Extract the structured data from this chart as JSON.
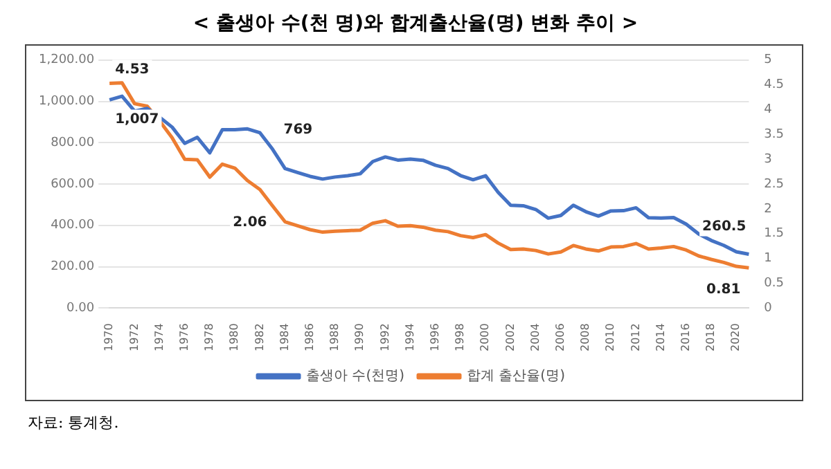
{
  "chart_data": {
    "type": "line",
    "title": "< 출생아 수(천 명)와 합계출산율(명) 변화 추이 >",
    "categories": [
      "1970",
      null,
      "1972",
      null,
      "1974",
      null,
      "1976",
      null,
      "1978",
      null,
      "1980",
      null,
      "1982",
      null,
      "1984",
      null,
      "1986",
      null,
      "1988",
      null,
      "1990",
      null,
      "1992",
      null,
      "1994",
      null,
      "1996",
      null,
      "1998",
      null,
      "2000",
      null,
      "2002",
      null,
      "2004",
      null,
      "2006",
      null,
      "2008",
      null,
      "2010",
      null,
      "2012",
      null,
      "2014",
      null,
      "2016",
      null,
      "2018",
      null,
      "2020",
      null
    ],
    "series": [
      {
        "name": "출생아 수(천명)",
        "color": "#4472c4",
        "values": [
          1007,
          1025,
          953,
          966,
          923,
          875,
          797,
          826,
          751,
          863,
          863,
          867,
          848,
          769,
          675,
          656,
          637,
          624,
          634,
          640,
          650,
          709,
          731,
          716,
          721,
          715,
          691,
          675,
          641,
          621,
          640,
          560,
          497,
          495,
          477,
          435,
          448,
          497,
          466,
          445,
          470,
          471,
          485,
          437,
          435,
          438,
          406,
          358,
          327,
          303,
          272,
          260.5
        ],
        "value_labels": [
          "1,007",
          null,
          null,
          null,
          null,
          null,
          null,
          null,
          null,
          null,
          null,
          null,
          null,
          "769",
          null,
          null,
          null,
          null,
          null,
          null,
          null,
          null,
          null,
          null,
          null,
          null,
          null,
          null,
          null,
          null,
          null,
          null,
          null,
          null,
          null,
          null,
          null,
          null,
          null,
          null,
          null,
          null,
          null,
          null,
          null,
          null,
          null,
          null,
          null,
          null,
          null,
          "260.5"
        ]
      },
      {
        "name": "합계 출산율(명)",
        "color": "#ed7d31",
        "axis": "y2",
        "values": [
          4.53,
          4.54,
          4.12,
          4.07,
          3.77,
          3.43,
          3.0,
          2.99,
          2.64,
          2.9,
          2.82,
          2.57,
          2.39,
          2.06,
          1.74,
          1.66,
          1.58,
          1.53,
          1.55,
          1.56,
          1.57,
          1.71,
          1.76,
          1.65,
          1.66,
          1.63,
          1.57,
          1.54,
          1.46,
          1.42,
          1.48,
          1.31,
          1.18,
          1.19,
          1.16,
          1.09,
          1.13,
          1.26,
          1.19,
          1.15,
          1.23,
          1.24,
          1.3,
          1.19,
          1.21,
          1.24,
          1.17,
          1.05,
          0.98,
          0.92,
          0.84,
          0.81
        ],
        "value_labels": [
          "4.53",
          null,
          null,
          null,
          null,
          null,
          null,
          null,
          null,
          null,
          null,
          null,
          null,
          "2.06",
          null,
          null,
          null,
          null,
          null,
          null,
          null,
          null,
          null,
          null,
          null,
          null,
          null,
          null,
          null,
          null,
          null,
          null,
          null,
          null,
          null,
          null,
          null,
          null,
          null,
          null,
          null,
          null,
          null,
          null,
          null,
          null,
          null,
          null,
          null,
          null,
          null,
          "0.81"
        ]
      }
    ],
    "ylim": [
      0,
      1200
    ],
    "yticks": [
      {
        "value": 0,
        "label": "0.00"
      },
      {
        "value": 200,
        "label": "200.00"
      },
      {
        "value": 400,
        "label": "400.00"
      },
      {
        "value": 600,
        "label": "600.00"
      },
      {
        "value": 800,
        "label": "800.00"
      },
      {
        "value": 1000,
        "label": "1,000.00"
      },
      {
        "value": 1200,
        "label": "1,200.00"
      }
    ],
    "y2lim": [
      0,
      5
    ],
    "y2ticks": [
      0,
      0.5,
      1,
      1.5,
      2,
      2.5,
      3,
      3.5,
      4,
      4.5,
      5
    ],
    "grid": "y",
    "legend": "bottom",
    "marker": "none",
    "line_style": "solid",
    "annotations": [
      "자료: 통계청."
    ]
  }
}
